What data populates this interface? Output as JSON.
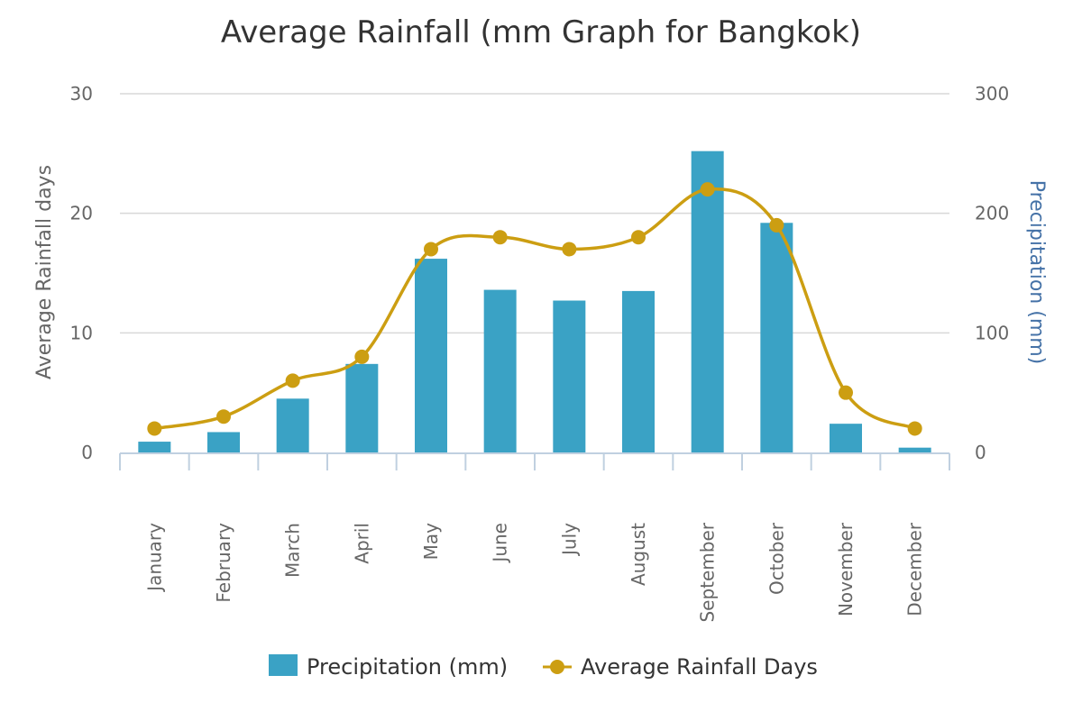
{
  "chart_data": {
    "type": "bar",
    "title": "Average Rainfall (mm Graph for Bangkok)",
    "categories": [
      "January",
      "February",
      "March",
      "April",
      "May",
      "June",
      "July",
      "August",
      "September",
      "October",
      "November",
      "December"
    ],
    "series": [
      {
        "name": "Precipitation (mm)",
        "type": "bar",
        "axis": "right",
        "color": "#3aa2c5",
        "values": [
          9,
          17,
          45,
          74,
          162,
          136,
          127,
          135,
          252,
          192,
          24,
          4
        ]
      },
      {
        "name": "Average Rainfall Days",
        "type": "line",
        "axis": "left",
        "color": "#cc9e12",
        "values": [
          2,
          3,
          6,
          8,
          17,
          18,
          17,
          18,
          22,
          19,
          5,
          2
        ]
      }
    ],
    "y_left": {
      "label": "Average Rainfall days",
      "min": 0,
      "max": 30,
      "ticks": [
        0,
        10,
        20,
        30
      ]
    },
    "y_right": {
      "label": "Precipitation (mm)",
      "min": 0,
      "max": 300,
      "ticks": [
        0,
        100,
        200,
        300
      ]
    },
    "grid": true,
    "legend_position": "bottom-center"
  }
}
